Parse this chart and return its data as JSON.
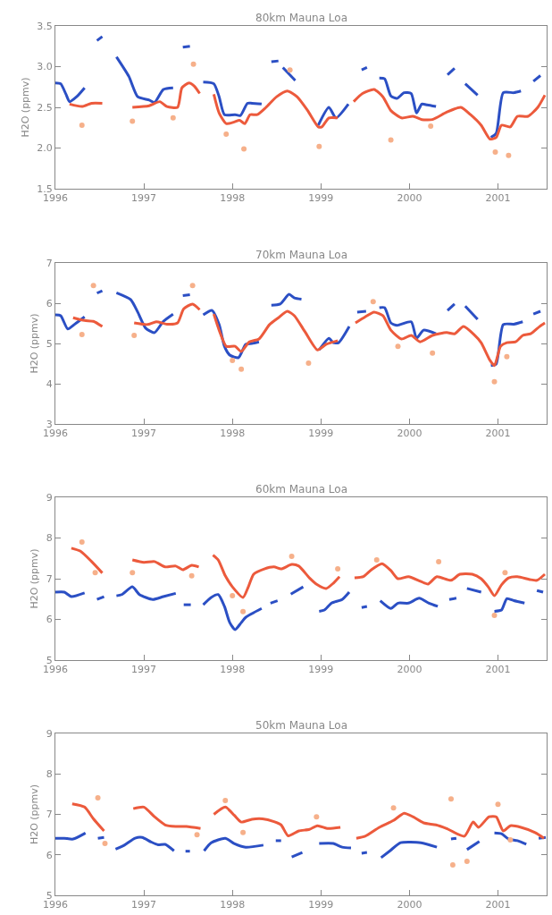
{
  "chart_data": [
    {
      "type": "line",
      "title": "80km Mauna Loa",
      "ylabel": "H2O (ppmv)",
      "xlim": [
        1996,
        2001.55
      ],
      "xticks": [
        1996,
        1997,
        1998,
        1999,
        2000,
        2001
      ],
      "ylim": [
        1.5,
        3.5
      ],
      "yticks": [
        {
          "value": 1.5,
          "label": "1.5"
        },
        {
          "value": 2,
          "label": "2.0"
        },
        {
          "value": 2.5,
          "label": "2.5"
        },
        {
          "value": 3,
          "label": "3.0"
        },
        {
          "value": 3.5,
          "label": "3.5"
        }
      ],
      "series": [
        {
          "type": "scatter",
          "color": "#f6b08a",
          "x": [
            1996.3,
            1997.56,
            1997.93,
            1998.13,
            1998.98,
            1999.79,
            2000.97,
            2001.12,
            1996.87,
            1997.33,
            1998.65,
            2000.24
          ],
          "values": [
            2.28,
            3.03,
            2.17,
            1.99,
            2.02,
            2.1,
            1.95,
            1.91,
            2.33,
            2.37,
            2.96,
            2.27
          ]
        },
        {
          "type": "line",
          "color": "#2b4fc4",
          "x": [
            1996.0,
            1996.06,
            1996.12,
            1996.16,
            1996.24,
            1996.33,
            1996.4,
            1996.47,
            1996.53,
            1996.6,
            1996.69,
            1996.83,
            1996.93,
            1997.06,
            1997.12,
            1997.22,
            1997.33,
            1997.4,
            1997.44,
            1997.52,
            1997.58,
            1997.67,
            1997.79,
            1997.85,
            1997.91,
            1998.03,
            1998.09,
            1998.17,
            1998.22,
            1998.33,
            1998.4,
            1998.44,
            1998.52,
            1998.55,
            1998.57,
            1998.71,
            1998.85,
            1998.97,
            1999.09,
            1999.17,
            1999.31,
            1999.4,
            1999.46,
            1999.52,
            1999.6,
            1999.66,
            1999.72,
            1999.79,
            1999.86,
            1999.94,
            2000.02,
            2000.08,
            2000.14,
            2000.2,
            2000.3,
            2000.37,
            2000.43,
            2000.51,
            2000.57,
            2000.63,
            2000.77,
            2000.85,
            2000.92,
            2000.98,
            2001.06,
            2001.18,
            2001.26,
            2001.33,
            2001.4,
            2001.48
          ],
          "values": [
            2.8,
            2.79,
            2.66,
            2.57,
            2.63,
            2.74,
            null,
            3.32,
            3.37,
            null,
            3.12,
            2.88,
            2.63,
            2.59,
            2.56,
            2.72,
            2.74,
            null,
            3.24,
            3.25,
            null,
            2.81,
            2.79,
            2.63,
            2.41,
            2.41,
            2.4,
            2.55,
            2.55,
            2.54,
            null,
            3.06,
            3.07,
            null,
            2.99,
            2.83,
            null,
            2.28,
            2.5,
            2.37,
            2.54,
            null,
            2.96,
            2.99,
            null,
            2.86,
            2.85,
            2.64,
            2.61,
            2.68,
            2.67,
            2.43,
            2.54,
            2.53,
            2.51,
            null,
            2.9,
            2.98,
            null,
            2.79,
            2.65,
            null,
            2.13,
            2.18,
            2.68,
            2.68,
            2.7,
            null,
            2.82,
            2.89
          ]
        },
        {
          "type": "line",
          "color": "#ec5a3c",
          "x": [
            1996.16,
            1996.3,
            1996.41,
            1996.53,
            1996.7,
            1996.87,
            1997.06,
            1997.18,
            1997.26,
            1997.38,
            1997.43,
            1997.51,
            1997.57,
            1997.63,
            1997.7,
            1997.79,
            1997.85,
            1997.93,
            1998.02,
            1998.08,
            1998.14,
            1998.2,
            1998.28,
            1998.38,
            1998.5,
            1998.62,
            1998.73,
            1998.85,
            1998.97,
            1999.01,
            1999.09,
            1999.19,
            1999.28,
            1999.37,
            1999.47,
            1999.6,
            1999.7,
            1999.79,
            1999.91,
            2000.04,
            2000.14,
            2000.26,
            2000.42,
            2000.58,
            2000.69,
            2000.81,
            2000.91,
            2000.98,
            2001.04,
            2001.14,
            2001.22,
            2001.34,
            2001.45,
            2001.53
          ],
          "values": [
            2.54,
            2.51,
            2.55,
            2.55,
            null,
            2.5,
            2.52,
            2.57,
            2.51,
            2.5,
            2.74,
            2.8,
            2.76,
            2.67,
            null,
            2.66,
            2.43,
            2.3,
            2.32,
            2.34,
            2.3,
            2.41,
            2.41,
            2.5,
            2.63,
            2.7,
            2.63,
            2.46,
            2.26,
            2.26,
            2.37,
            2.37,
            null,
            2.57,
            2.67,
            2.72,
            2.63,
            2.46,
            2.37,
            2.39,
            2.35,
            2.35,
            2.44,
            2.5,
            2.41,
            2.28,
            2.11,
            2.13,
            2.28,
            2.26,
            2.39,
            2.39,
            2.5,
            2.65
          ]
        }
      ]
    },
    {
      "type": "line",
      "title": "70km Mauna Loa",
      "ylabel": "H2O (ppmv)",
      "xlim": [
        1996,
        2001.55
      ],
      "xticks": [
        1996,
        1997,
        1998,
        1999,
        2000,
        2001
      ],
      "ylim": [
        3,
        7
      ],
      "yticks": [
        3,
        4,
        5,
        6,
        7
      ],
      "series": [
        {
          "type": "scatter",
          "color": "#f6b08a",
          "x": [
            1996.43,
            1997.55,
            1998.1,
            1998.86,
            2000.96,
            1999.59,
            1996.89,
            1996.3,
            1998.0,
            1999.87,
            2001.1,
            2000.26
          ],
          "values": [
            6.44,
            6.44,
            4.36,
            4.51,
            4.05,
            6.04,
            5.2,
            5.22,
            4.58,
            4.93,
            4.67,
            4.76
          ]
        },
        {
          "type": "line",
          "color": "#2b4fc4",
          "x": [
            1996.0,
            1996.06,
            1996.14,
            1996.22,
            1996.33,
            1996.4,
            1996.47,
            1996.53,
            1996.6,
            1996.69,
            1996.85,
            1996.93,
            1997.02,
            1997.12,
            1997.22,
            1997.33,
            1997.4,
            1997.44,
            1997.52,
            1997.58,
            1997.67,
            1997.77,
            1997.85,
            1997.91,
            1997.97,
            1998.07,
            1998.15,
            1998.22,
            1998.3,
            1998.37,
            1998.44,
            1998.54,
            1998.64,
            1998.7,
            1998.78,
            1998.88,
            1998.98,
            1999.09,
            1999.14,
            1999.2,
            1999.32,
            1999.37,
            1999.41,
            1999.51,
            1999.58,
            1999.66,
            1999.72,
            1999.79,
            1999.86,
            2000.02,
            2000.08,
            2000.16,
            2000.3,
            2000.37,
            2000.43,
            2000.51,
            2000.57,
            2000.63,
            2000.77,
            2000.85,
            2000.92,
            2000.98,
            2001.06,
            2001.18,
            2001.28,
            2001.34,
            2001.4,
            2001.48
          ],
          "values": [
            5.71,
            5.69,
            5.36,
            5.48,
            5.66,
            null,
            6.25,
            6.31,
            null,
            6.26,
            6.09,
            5.78,
            5.38,
            5.27,
            5.55,
            5.73,
            null,
            6.19,
            6.21,
            null,
            5.71,
            5.82,
            5.47,
            4.93,
            4.71,
            4.65,
            4.98,
            5.0,
            5.04,
            null,
            5.95,
            5.98,
            6.22,
            6.13,
            6.1,
            null,
            4.84,
            5.13,
            5.02,
            5.02,
            5.42,
            null,
            5.78,
            5.8,
            null,
            5.89,
            5.89,
            5.51,
            5.45,
            5.54,
            5.13,
            5.33,
            5.24,
            null,
            5.82,
            5.98,
            null,
            5.93,
            5.6,
            null,
            4.45,
            4.49,
            5.47,
            5.48,
            5.54,
            null,
            5.73,
            5.8
          ]
        },
        {
          "type": "line",
          "color": "#ec5a3c",
          "x": [
            1996.2,
            1996.33,
            1996.43,
            1996.53,
            1996.7,
            1996.89,
            1997.04,
            1997.14,
            1997.26,
            1997.38,
            1997.45,
            1997.55,
            1997.63,
            1997.7,
            1997.79,
            1997.85,
            1997.93,
            1998.03,
            1998.1,
            1998.19,
            1998.3,
            1998.42,
            1998.52,
            1998.62,
            1998.7,
            1998.82,
            1998.96,
            1999.06,
            1999.19,
            1999.3,
            1999.39,
            1999.5,
            1999.6,
            1999.7,
            1999.79,
            1999.91,
            2000.02,
            2000.12,
            2000.26,
            2000.42,
            2000.51,
            2000.61,
            2000.73,
            2000.81,
            2000.91,
            2000.96,
            2001.03,
            2001.1,
            2001.2,
            2001.28,
            2001.37,
            2001.47,
            2001.53
          ],
          "values": [
            5.64,
            5.57,
            5.55,
            5.42,
            null,
            5.51,
            5.47,
            5.54,
            5.48,
            5.51,
            5.86,
            5.98,
            5.84,
            null,
            5.73,
            5.33,
            4.93,
            4.93,
            4.8,
            5.04,
            5.11,
            5.47,
            5.64,
            5.8,
            5.69,
            5.29,
            4.84,
            4.98,
            5.07,
            null,
            5.51,
            5.66,
            5.78,
            5.69,
            5.33,
            5.11,
            5.2,
            5.04,
            5.2,
            5.27,
            5.24,
            5.42,
            5.22,
            5.02,
            4.58,
            4.45,
            4.93,
            5.02,
            5.04,
            5.2,
            5.24,
            5.42,
            5.51
          ]
        }
      ]
    },
    {
      "type": "line",
      "title": "60km Mauna Loa",
      "ylabel": "H2O (ppmv)",
      "xlim": [
        1996,
        2001.55
      ],
      "xticks": [
        1996,
        1997,
        1998,
        1999,
        2000,
        2001
      ],
      "ylim": [
        5,
        9
      ],
      "yticks": [
        5,
        6,
        7,
        8,
        9
      ],
      "series": [
        {
          "type": "scatter",
          "color": "#f6b08a",
          "x": [
            1996.3,
            1997.54,
            1998.12,
            1998.67,
            2000.96,
            2000.33,
            1996.45,
            1996.87,
            1998.0,
            1999.19,
            1999.63,
            2001.08
          ],
          "values": [
            7.9,
            7.07,
            6.19,
            7.55,
            6.1,
            7.42,
            7.15,
            7.15,
            6.58,
            7.24,
            7.46,
            7.15
          ]
        },
        {
          "type": "line",
          "color": "#2b4fc4",
          "x": [
            1996.0,
            1996.1,
            1996.18,
            1996.33,
            1996.4,
            1996.47,
            1996.55,
            1996.62,
            1996.69,
            1996.75,
            1996.87,
            1996.95,
            1997.1,
            1997.22,
            1997.36,
            1997.42,
            1997.45,
            1997.53,
            1997.6,
            1997.67,
            1997.76,
            1997.84,
            1997.91,
            1997.97,
            1998.03,
            1998.1,
            1998.15,
            1998.33,
            1998.38,
            1998.43,
            1998.51,
            1998.58,
            1998.66,
            1998.8,
            1998.9,
            1998.98,
            1999.04,
            1999.12,
            1999.24,
            1999.32,
            1999.4,
            1999.46,
            1999.52,
            1999.6,
            1999.67,
            1999.79,
            1999.87,
            1999.99,
            2000.11,
            2000.22,
            2000.32,
            2000.4,
            2000.45,
            2000.53,
            2000.6,
            2000.65,
            2000.81,
            2000.88,
            2000.96,
            2001.04,
            2001.1,
            2001.18,
            2001.3,
            2001.37,
            2001.44,
            2001.51
          ],
          "values": [
            6.67,
            6.67,
            6.56,
            6.65,
            null,
            6.49,
            6.56,
            null,
            6.58,
            6.61,
            6.8,
            6.61,
            6.49,
            6.56,
            6.64,
            null,
            6.36,
            6.36,
            null,
            6.36,
            6.54,
            6.61,
            6.32,
            5.92,
            5.75,
            5.92,
            6.05,
            6.27,
            null,
            6.4,
            6.46,
            null,
            6.62,
            6.8,
            null,
            6.2,
            6.23,
            6.4,
            6.49,
            6.67,
            null,
            6.29,
            6.32,
            null,
            6.46,
            6.27,
            6.4,
            6.4,
            6.52,
            6.4,
            6.32,
            null,
            6.49,
            6.52,
            null,
            6.76,
            6.67,
            null,
            6.2,
            6.23,
            6.51,
            6.46,
            6.4,
            null,
            6.71,
            6.67
          ]
        },
        {
          "type": "line",
          "color": "#ec5a3c",
          "x": [
            1996.18,
            1996.28,
            1996.41,
            1996.53,
            1996.7,
            1996.87,
            1997.0,
            1997.12,
            1997.24,
            1997.36,
            1997.44,
            1997.54,
            1997.62,
            1997.7,
            1997.78,
            1997.84,
            1997.92,
            1998.0,
            1998.12,
            1998.18,
            1998.24,
            1998.36,
            1998.47,
            1998.55,
            1998.67,
            1998.75,
            1998.87,
            1998.96,
            1999.06,
            1999.14,
            1999.21,
            1999.3,
            1999.38,
            1999.48,
            1999.57,
            1999.69,
            1999.79,
            1999.87,
            1999.99,
            2000.13,
            2000.21,
            2000.31,
            2000.47,
            2000.57,
            2000.71,
            2000.81,
            2000.89,
            2000.96,
            2001.04,
            2001.12,
            2001.22,
            2001.36,
            2001.44,
            2001.53
          ],
          "values": [
            7.75,
            7.68,
            7.42,
            7.14,
            null,
            7.46,
            7.4,
            7.42,
            7.29,
            7.31,
            7.22,
            7.33,
            7.29,
            null,
            7.58,
            7.46,
            7.07,
            6.8,
            6.54,
            6.8,
            7.11,
            7.24,
            7.29,
            7.24,
            7.35,
            7.31,
            7.02,
            6.85,
            6.76,
            6.89,
            7.05,
            null,
            7.02,
            7.05,
            7.22,
            7.37,
            7.2,
            7.0,
            7.05,
            6.93,
            6.87,
            7.05,
            6.96,
            7.11,
            7.11,
            7.0,
            6.8,
            6.58,
            6.85,
            7.02,
            7.05,
            6.98,
            6.96,
            7.11
          ]
        }
      ]
    },
    {
      "type": "line",
      "title": "50km Mauna Loa",
      "ylabel": "H2O (ppmv)",
      "xlim": [
        1996,
        2001.55
      ],
      "xticks": [
        1996,
        1997,
        1998,
        1999,
        2000,
        2001
      ],
      "ylim": [
        5,
        9
      ],
      "yticks": [
        5,
        6,
        7,
        8,
        9
      ],
      "series": [
        {
          "type": "scatter",
          "color": "#f6b08a",
          "x": [
            2000.47,
            2000.49,
            2000.65,
            1996.48,
            2001.0,
            1996.56,
            1997.92,
            1998.12,
            1998.95,
            1999.82,
            2001.14,
            1997.6
          ],
          "values": [
            7.38,
            5.75,
            5.84,
            7.41,
            7.25,
            6.28,
            7.34,
            6.55,
            6.94,
            7.16,
            6.37,
            6.5
          ]
        },
        {
          "type": "line",
          "color": "#2b4fc4",
          "x": [
            1996.0,
            1996.1,
            1996.2,
            1996.34,
            1996.41,
            1996.48,
            1996.55,
            1996.62,
            1996.68,
            1996.78,
            1996.9,
            1996.98,
            1997.08,
            1997.16,
            1997.24,
            1997.34,
            1997.4,
            1997.47,
            1997.52,
            1997.6,
            1997.68,
            1997.76,
            1997.92,
            1998.02,
            1998.15,
            1998.35,
            1998.42,
            1998.49,
            1998.55,
            1998.61,
            1998.67,
            1998.79,
            1998.88,
            1998.98,
            1999.14,
            1999.24,
            1999.34,
            1999.4,
            1999.46,
            1999.52,
            1999.6,
            1999.68,
            1999.78,
            1999.9,
            2000.13,
            2000.31,
            2000.39,
            2000.47,
            2000.53,
            2000.59,
            2000.65,
            2000.79,
            2000.88,
            2000.96,
            2001.04,
            2001.12,
            2001.22,
            2001.32,
            2001.39,
            2001.46,
            2001.54
          ],
          "values": [
            6.41,
            6.41,
            6.39,
            6.54,
            null,
            6.41,
            6.43,
            null,
            6.14,
            6.24,
            6.41,
            6.43,
            6.32,
            6.25,
            6.26,
            6.1,
            null,
            6.09,
            6.09,
            null,
            6.1,
            6.3,
            6.41,
            6.28,
            6.19,
            6.24,
            null,
            6.35,
            6.35,
            null,
            5.95,
            6.06,
            null,
            6.28,
            6.28,
            6.19,
            6.17,
            null,
            6.04,
            6.06,
            null,
            5.93,
            6.1,
            6.3,
            6.3,
            6.19,
            null,
            6.39,
            6.41,
            null,
            6.13,
            6.33,
            null,
            6.54,
            6.52,
            6.39,
            6.35,
            6.26,
            null,
            6.41,
            6.43
          ]
        },
        {
          "type": "line",
          "color": "#ec5a3c",
          "x": [
            1996.19,
            1996.33,
            1996.43,
            1996.55,
            1996.7,
            1996.88,
            1997.0,
            1997.12,
            1997.24,
            1997.36,
            1997.48,
            1997.64,
            1997.7,
            1997.79,
            1997.92,
            1998.02,
            1998.1,
            1998.22,
            1998.34,
            1998.47,
            1998.55,
            1998.63,
            1998.75,
            1998.87,
            1998.96,
            1999.08,
            1999.22,
            1999.3,
            1999.4,
            1999.5,
            1999.66,
            1999.82,
            1999.94,
            2000.04,
            2000.16,
            2000.3,
            2000.42,
            2000.62,
            2000.72,
            2000.78,
            2000.9,
            2000.98,
            2001.06,
            2001.14,
            2001.26,
            2001.42,
            2001.52
          ],
          "values": [
            7.26,
            7.18,
            6.89,
            6.59,
            null,
            7.14,
            7.18,
            6.94,
            6.74,
            6.7,
            6.7,
            6.65,
            null,
            7.0,
            7.18,
            6.98,
            6.81,
            6.88,
            6.89,
            6.82,
            6.74,
            6.47,
            6.59,
            6.63,
            6.72,
            6.65,
            6.68,
            null,
            6.41,
            6.46,
            6.68,
            6.85,
            7.03,
            6.94,
            6.79,
            6.74,
            6.65,
            6.46,
            6.81,
            6.68,
            6.94,
            6.94,
            6.59,
            6.72,
            6.68,
            6.55,
            6.41
          ]
        }
      ]
    }
  ]
}
